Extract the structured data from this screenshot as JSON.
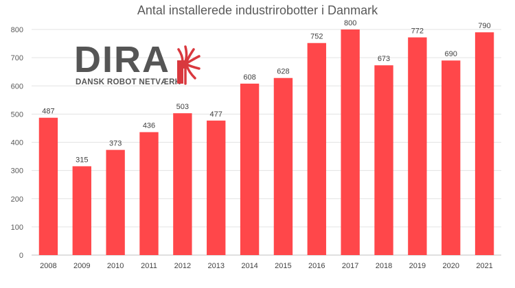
{
  "logo": {
    "wordmark": "DIRA",
    "tagline": "DANSK ROBOT NETVÆRK",
    "accent_color": "#d9383e",
    "text_color": "#555555"
  },
  "chart_data": {
    "type": "bar",
    "title": "Antal installerede industrirobotter i Danmark",
    "xlabel": "",
    "ylabel": "",
    "categories": [
      "2008",
      "2009",
      "2010",
      "2011",
      "2012",
      "2013",
      "2014",
      "2015",
      "2016",
      "2017",
      "2018",
      "2019",
      "2020",
      "2021"
    ],
    "values": [
      487,
      315,
      373,
      436,
      503,
      477,
      608,
      628,
      752,
      800,
      673,
      772,
      690,
      790
    ],
    "ylim": [
      0,
      800
    ],
    "yticks": [
      0,
      100,
      200,
      300,
      400,
      500,
      600,
      700,
      800
    ],
    "grid": true,
    "legend": "none",
    "bar_color": "#ff474a"
  }
}
